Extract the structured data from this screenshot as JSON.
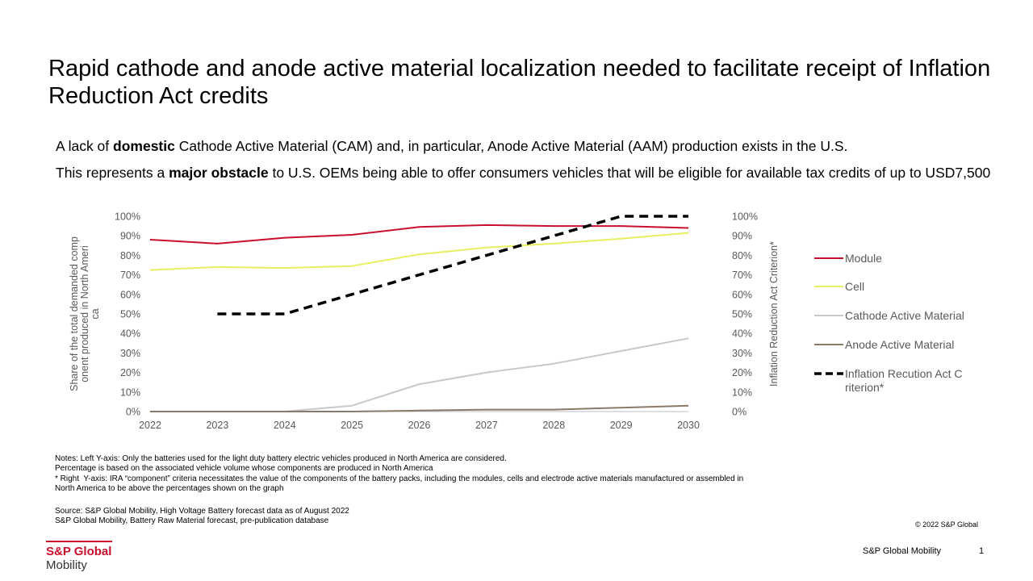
{
  "title": "Rapid cathode and anode active material localization  needed to facilitate receipt of Inflation Reduction Act credits",
  "subtitle1": {
    "pre": "A lack of ",
    "bold": "domestic",
    "post": " Cathode Active Material (CAM) and, in particular, Anode Active Material (AAM) production exists in the U.S."
  },
  "subtitle2": {
    "pre": "This represents a ",
    "bold": "major obstacle",
    "post": " to U.S. OEMs being able to offer consumers vehicles that will be eligible for available tax credits of up to USD7,500"
  },
  "chart_data": {
    "type": "line",
    "x": [
      2022,
      2023,
      2024,
      2025,
      2026,
      2027,
      2028,
      2029,
      2030
    ],
    "x_tick_labels": [
      "2022",
      "2023",
      "2024",
      "2025",
      "2026",
      "2027",
      "2028",
      "2029",
      "2030"
    ],
    "ylabel_left": "Share of the total demanded component produced in North America",
    "ylabel_right": "Inflation Reduction Act Criterion*",
    "ylim": [
      0,
      100
    ],
    "y_tick_labels": [
      "0%",
      "10%",
      "20%",
      "30%",
      "40%",
      "50%",
      "60%",
      "70%",
      "80%",
      "90%",
      "100%"
    ],
    "grid": false,
    "legend_position": "right",
    "series": [
      {
        "name": "Module",
        "axis": "left",
        "color": "#c8102e",
        "dashed": false,
        "values": [
          88,
          86,
          89,
          90.5,
          94.5,
          95.5,
          95,
          95,
          94
        ]
      },
      {
        "name": "Cell",
        "axis": "left",
        "color": "#e8f060",
        "dashed": false,
        "values": [
          72.5,
          74,
          73.5,
          74.5,
          80.5,
          84,
          86,
          88.5,
          91.5
        ]
      },
      {
        "name": "Cathode Active Material",
        "axis": "left",
        "color": "#c8c8c8",
        "dashed": false,
        "values": [
          0,
          0,
          0,
          3,
          14,
          20,
          24.5,
          31,
          37.5
        ]
      },
      {
        "name": "Anode Active Material",
        "axis": "left",
        "color": "#8c7a68",
        "dashed": false,
        "values": [
          0,
          0,
          0,
          0,
          0.5,
          1,
          1,
          2,
          3
        ]
      },
      {
        "name": "Inflation Recution Act Criterion*",
        "axis": "right",
        "color": "#000000",
        "dashed": true,
        "values": [
          null,
          50,
          50,
          60,
          70,
          80,
          90,
          100,
          100
        ]
      }
    ]
  },
  "notes": [
    "Notes: Left Y-axis: Only the batteries used for the light duty battery electric vehicles produced in North America are considered.",
    "Percentage is based on the associated vehicle volume whose components are produced in North America",
    "* Right  Y-axis: IRA “component” criteria necessitates the value of the components of the battery packs, including the modules, cells and electrode active materials manufactured or assembled in North America to be above the percentages shown on the graph"
  ],
  "source": [
    "Source: S&P Global Mobility,  High Voltage Battery forecast data as of August 2022",
    "S&P Global Mobility,  Battery Raw Material forecast, pre-publication database"
  ],
  "copyright": "© 2022  S&P Global",
  "logo": {
    "line1": "S&P Global",
    "line2": "Mobility"
  },
  "footer": {
    "name": "S&P Global Mobility",
    "page": "1"
  },
  "colors": {
    "brand": "#c8102e"
  }
}
